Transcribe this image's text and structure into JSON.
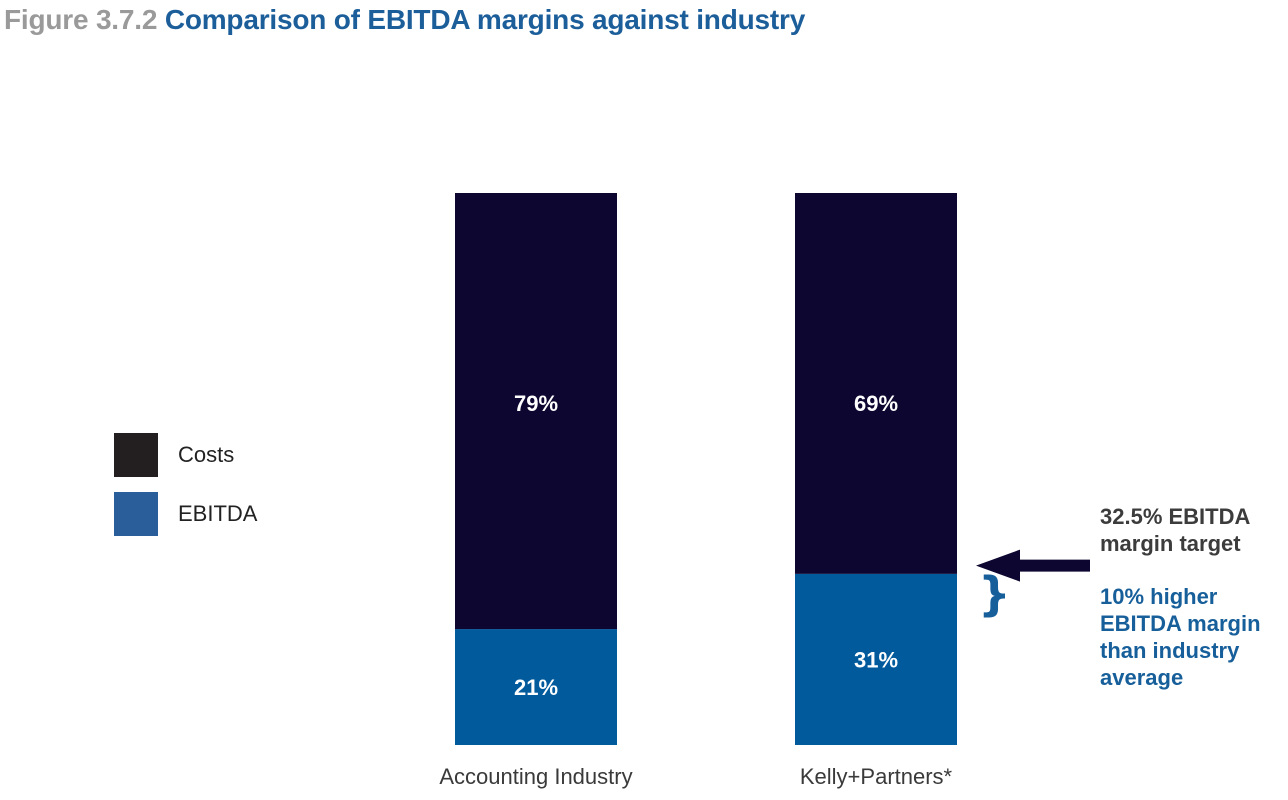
{
  "title_prefix": "Figure 3.7.2",
  "title": "Comparison of EBITDA margins against industry",
  "colors": {
    "costs_bar": "#0d0630",
    "ebitda_bar": "#005a9c",
    "costs_legend": "#231f20",
    "ebitda_legend": "#2a5e9b",
    "arrow": "#0d0630"
  },
  "legend": [
    {
      "label": "Costs",
      "color": "#231f20"
    },
    {
      "label": "EBITDA",
      "color": "#2a5e9b"
    }
  ],
  "chart_data": {
    "type": "bar",
    "stacked": true,
    "categories": [
      "Accounting Industry",
      "Kelly+Partners*"
    ],
    "series": [
      {
        "name": "EBITDA",
        "values": [
          21,
          31
        ],
        "labels": [
          "21%",
          "31%"
        ]
      },
      {
        "name": "Costs",
        "values": [
          79,
          69
        ],
        "labels": [
          "79%",
          "69%"
        ]
      }
    ],
    "ylim": [
      0,
      100
    ],
    "grid": false,
    "legend_position": "left"
  },
  "annotations": {
    "target_value": 32.5,
    "target_lines": [
      "32.5% EBITDA",
      "margin target"
    ],
    "brace": "}",
    "higher_lines": [
      "10% higher",
      "EBITDA margin",
      "than industry",
      "average"
    ]
  }
}
